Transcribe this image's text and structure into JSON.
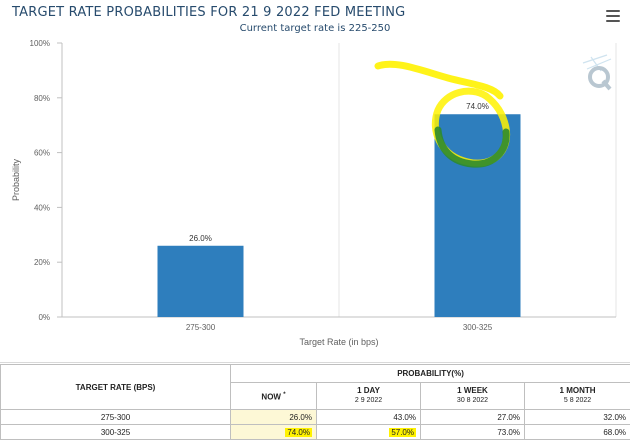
{
  "chart": {
    "title": "TARGET RATE PROBABILITIES FOR 21 9 2022 FED MEETING",
    "subtitle": "Current target rate is 225-250"
  },
  "chart_data": {
    "type": "bar",
    "title": "TARGET RATE PROBABILITIES FOR 21 9 2022 FED MEETING",
    "subtitle": "Current target rate is 225-250",
    "categories": [
      "275-300",
      "300-325"
    ],
    "values": [
      26.0,
      74.0
    ],
    "data_labels": [
      "26.0%",
      "74.0%"
    ],
    "xlabel": "Target Rate (in bps)",
    "ylabel": "Probability",
    "ylim": [
      0,
      100
    ],
    "yticks": [
      "0%",
      "20%",
      "40%",
      "60%",
      "80%",
      "100%"
    ],
    "ytick_values": [
      0,
      20,
      40,
      60,
      80,
      100
    ],
    "grid": "vertical",
    "colors": {
      "bar": "#2e7ebd",
      "gridline": "#e6e6e6",
      "axis_text": "#606060",
      "title": "#274b6d"
    },
    "annotation": "hand-drawn yellow/green circle around the 300-325 bar label"
  },
  "table": {
    "header_rate": "TARGET RATE (BPS)",
    "header_probability": "PROBABILITY(%)",
    "col_now": "NOW",
    "col_now_marker": "*",
    "col_1day": "1 DAY",
    "col_1day_date": "2 9 2022",
    "col_1week": "1 WEEK",
    "col_1week_date": "30 8 2022",
    "col_1month": "1 MONTH",
    "col_1month_date": "5 8 2022",
    "rows": [
      {
        "rate": "275-300",
        "now": "26.0%",
        "day1": "43.0%",
        "week1": "27.0%",
        "month1": "32.0%"
      },
      {
        "rate": "300-325",
        "now": "74.0%",
        "day1": "57.0%",
        "week1": "73.0%",
        "month1": "68.0%"
      }
    ],
    "highlight_colors": {
      "pale": "#fdf8d6",
      "marker": "#fff200"
    }
  },
  "icons": {
    "menu": "hamburger-menu-icon",
    "logo": "q-logo-icon"
  }
}
